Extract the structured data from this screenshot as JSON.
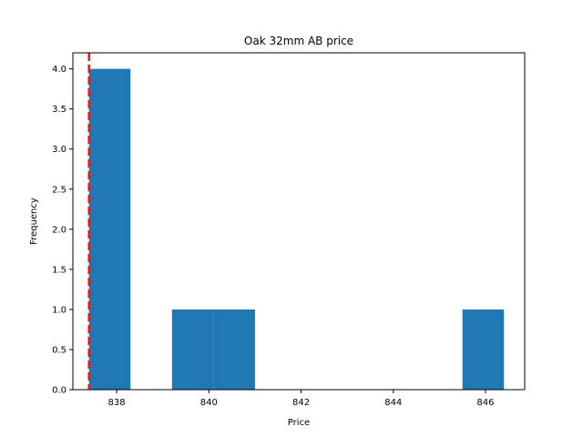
{
  "chart_data": {
    "type": "bar",
    "title": "Oak 32mm AB price",
    "xlabel": "Price",
    "ylabel": "Frequency",
    "xlim": [
      837.05,
      846.85
    ],
    "ylim": [
      0,
      4.2
    ],
    "bins": [
      {
        "x0": 837.4,
        "x1": 838.3,
        "count": 4
      },
      {
        "x0": 838.3,
        "x1": 839.2,
        "count": 0
      },
      {
        "x0": 839.2,
        "x1": 840.1,
        "count": 1
      },
      {
        "x0": 840.1,
        "x1": 841.0,
        "count": 1
      },
      {
        "x0": 841.0,
        "x1": 841.9,
        "count": 0
      },
      {
        "x0": 841.9,
        "x1": 842.8,
        "count": 0
      },
      {
        "x0": 842.8,
        "x1": 843.7,
        "count": 0
      },
      {
        "x0": 843.7,
        "x1": 844.6,
        "count": 0
      },
      {
        "x0": 844.6,
        "x1": 845.5,
        "count": 0
      },
      {
        "x0": 845.5,
        "x1": 846.4,
        "count": 1
      }
    ],
    "x_ticks": [
      "838",
      "840",
      "842",
      "844",
      "846"
    ],
    "y_ticks": [
      "0.0",
      "0.5",
      "1.0",
      "1.5",
      "2.0",
      "2.5",
      "3.0",
      "3.5",
      "4.0"
    ],
    "reference_line": {
      "x": 837.4,
      "color": "#e31a1c",
      "style": "dashed"
    },
    "bar_color": "#1f77b4",
    "grid": false,
    "legend": false
  }
}
